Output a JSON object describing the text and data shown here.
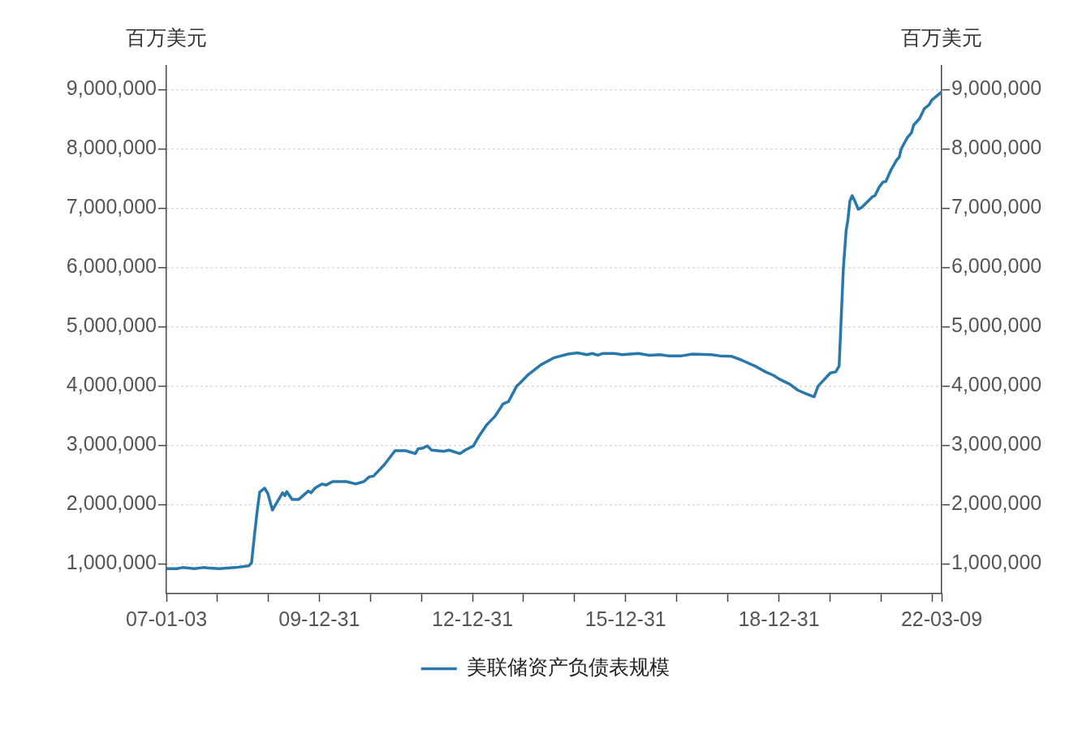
{
  "chart_data": {
    "type": "line",
    "ylabel": "百万美元",
    "y2label": "百万美元",
    "x": [
      "2007-01-03",
      "2007-03-18",
      "2007-04-28",
      "2007-07-24",
      "2007-09-20",
      "2008-01-15",
      "2008-05-10",
      "2008-08-15",
      "2008-09-03",
      "2008-09-22",
      "2008-10-12",
      "2008-10-31",
      "2008-12-05",
      "2008-12-28",
      "2009-01-30",
      "2009-03-06",
      "2009-04-13",
      "2009-04-29",
      "2009-05-12",
      "2009-06-20",
      "2009-08-07",
      "2009-10-14",
      "2009-11-02",
      "2009-12-01",
      "2010-01-19",
      "2010-02-17",
      "2010-04-06",
      "2010-07-12",
      "2010-09-18",
      "2010-11-15",
      "2010-12-24",
      "2011-01-22",
      "2011-04-09",
      "2011-06-26",
      "2011-09-11",
      "2011-11-18",
      "2011-12-07",
      "2012-01-05",
      "2012-02-13",
      "2012-03-13",
      "2012-06-08",
      "2012-07-16",
      "2012-10-02",
      "2012-11-09",
      "2013-01-06",
      "2013-02-14",
      "2013-04-13",
      "2013-06-10",
      "2013-08-07",
      "2013-09-15",
      "2013-11-12",
      "2013-12-01",
      "2014-01-28",
      "2014-05-05",
      "2014-08-09",
      "2014-11-14",
      "2015-01-21",
      "2015-03-29",
      "2015-05-07",
      "2015-06-15",
      "2015-07-23",
      "2015-10-09",
      "2015-12-06",
      "2016-04-01",
      "2016-06-17",
      "2016-09-02",
      "2016-10-30",
      "2017-02-04",
      "2017-04-22",
      "2017-09-05",
      "2017-11-02",
      "2018-01-29",
      "2018-04-06",
      "2018-07-11",
      "2018-09-26",
      "2018-11-23",
      "2019-01-01",
      "2019-03-19",
      "2019-05-16",
      "2019-07-13",
      "2019-09-09",
      "2019-10-08",
      "2019-11-16",
      "2020-01-03",
      "2020-02-11",
      "2020-03-06",
      "2020-03-21",
      "2020-04-05",
      "2020-04-25",
      "2020-05-08",
      "2020-05-22",
      "2020-06-07",
      "2020-06-26",
      "2020-07-21",
      "2020-08-13",
      "2020-09-21",
      "2020-10-29",
      "2020-11-17",
      "2020-12-16",
      "2021-01-14",
      "2021-02-03",
      "2021-03-13",
      "2021-04-21",
      "2021-05-10",
      "2021-05-24",
      "2021-07-07",
      "2021-08-05",
      "2021-08-21",
      "2021-10-02",
      "2021-11-06",
      "2021-12-09",
      "2021-12-28",
      "2022-01-23",
      "2022-03-09"
    ],
    "series": [
      {
        "name": "美联储资产负债表规模",
        "color": "#2878ac",
        "values": [
          920000,
          920000,
          940000,
          920000,
          940000,
          920000,
          940000,
          970000,
          1020000,
          1450000,
          1870000,
          2210000,
          2280000,
          2190000,
          1910000,
          2050000,
          2200000,
          2150000,
          2220000,
          2090000,
          2090000,
          2230000,
          2200000,
          2280000,
          2350000,
          2330000,
          2390000,
          2390000,
          2350000,
          2390000,
          2470000,
          2480000,
          2670000,
          2910000,
          2910000,
          2860000,
          2940000,
          2950000,
          2990000,
          2920000,
          2900000,
          2920000,
          2860000,
          2920000,
          2990000,
          3150000,
          3350000,
          3490000,
          3700000,
          3740000,
          4000000,
          4040000,
          4180000,
          4360000,
          4480000,
          4540000,
          4560000,
          4530000,
          4550000,
          4520000,
          4550000,
          4550000,
          4530000,
          4550000,
          4520000,
          4530000,
          4510000,
          4510000,
          4540000,
          4530000,
          4510000,
          4500000,
          4440000,
          4340000,
          4240000,
          4180000,
          4120000,
          4030000,
          3930000,
          3870000,
          3820000,
          4000000,
          4100000,
          4220000,
          4240000,
          4340000,
          5160000,
          5980000,
          6620000,
          6810000,
          7120000,
          7210000,
          7120000,
          6980000,
          7010000,
          7100000,
          7190000,
          7210000,
          7350000,
          7440000,
          7450000,
          7650000,
          7810000,
          7860000,
          8000000,
          8190000,
          8270000,
          8400000,
          8510000,
          8680000,
          8740000,
          8820000,
          8870000,
          8960000
        ]
      }
    ],
    "xlim": [
      "2007-01-03",
      "2022-03-09"
    ],
    "xticks": [
      {
        "value": "2007-01-03",
        "label": "07-01-03"
      },
      {
        "value": "2007-12-31",
        "label": null
      },
      {
        "value": "2008-12-31",
        "label": null
      },
      {
        "value": "2009-12-31",
        "label": "09-12-31"
      },
      {
        "value": "2010-12-31",
        "label": null
      },
      {
        "value": "2011-12-31",
        "label": null
      },
      {
        "value": "2012-12-31",
        "label": "12-12-31"
      },
      {
        "value": "2013-12-31",
        "label": null
      },
      {
        "value": "2014-12-31",
        "label": null
      },
      {
        "value": "2015-12-31",
        "label": "15-12-31"
      },
      {
        "value": "2016-12-31",
        "label": null
      },
      {
        "value": "2017-12-31",
        "label": null
      },
      {
        "value": "2018-12-31",
        "label": "18-12-31"
      },
      {
        "value": "2019-12-31",
        "label": null
      },
      {
        "value": "2020-12-31",
        "label": null
      },
      {
        "value": "2021-12-31",
        "label": null
      },
      {
        "value": "2022-03-09",
        "label": "22-03-09"
      }
    ],
    "ylim": [
      500000,
      9400000
    ],
    "yticks": [
      {
        "value": 1000000,
        "label": "1,000,000"
      },
      {
        "value": 2000000,
        "label": "2,000,000"
      },
      {
        "value": 3000000,
        "label": "3,000,000"
      },
      {
        "value": 4000000,
        "label": "4,000,000"
      },
      {
        "value": 5000000,
        "label": "5,000,000"
      },
      {
        "value": 6000000,
        "label": "6,000,000"
      },
      {
        "value": 7000000,
        "label": "7,000,000"
      },
      {
        "value": 8000000,
        "label": "8,000,000"
      },
      {
        "value": 9000000,
        "label": "9,000,000"
      }
    ],
    "y2lim": [
      500000,
      9400000
    ],
    "y2ticks": [
      {
        "value": 1000000,
        "label": "1,000,000"
      },
      {
        "value": 2000000,
        "label": "2,000,000"
      },
      {
        "value": 3000000,
        "label": "3,000,000"
      },
      {
        "value": 4000000,
        "label": "4,000,000"
      },
      {
        "value": 5000000,
        "label": "5,000,000"
      },
      {
        "value": 6000000,
        "label": "6,000,000"
      },
      {
        "value": 7000000,
        "label": "7,000,000"
      },
      {
        "value": 8000000,
        "label": "8,000,000"
      },
      {
        "value": 9000000,
        "label": "9,000,000"
      }
    ],
    "grid": "y",
    "legend": "bottom"
  }
}
